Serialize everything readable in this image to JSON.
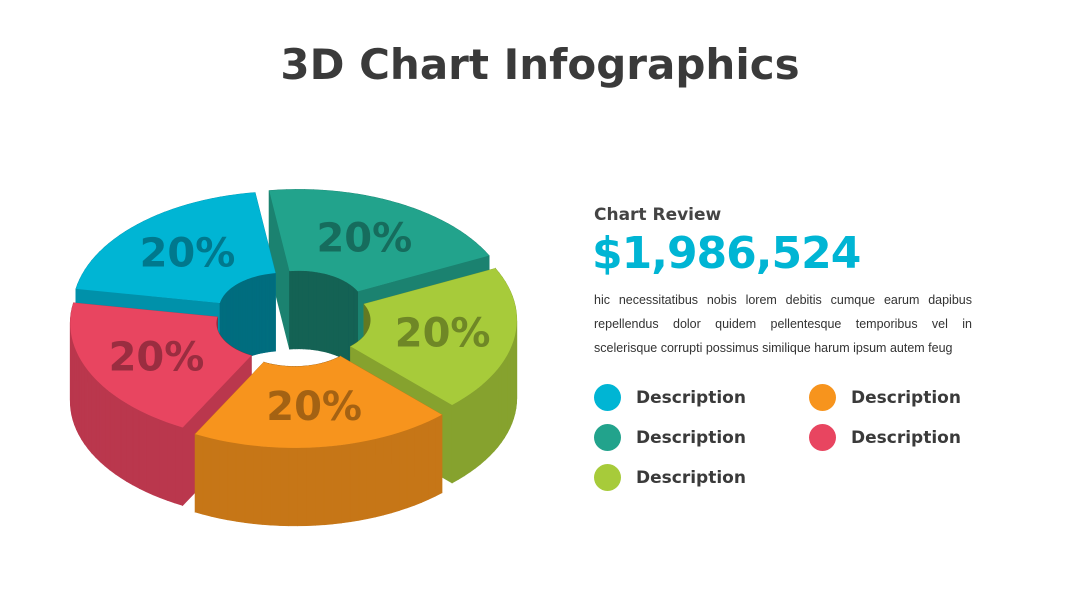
{
  "chart_data": {
    "type": "pie",
    "title": "3D Chart Infographics",
    "subtitle": "Chart Review",
    "annotations": [
      "$1,986,524",
      "hic necessitatibus nobis lorem debitis cumque earum dapibus repellendus dolor quidem pellentesque temporibus vel in scelerisque corrupti possimus similique harum ipsum autem feug"
    ],
    "categories": [
      "Description",
      "Description",
      "Description",
      "Description",
      "Description"
    ],
    "values": [
      20,
      20,
      20,
      20,
      20
    ],
    "value_labels": [
      "20%",
      "20%",
      "20%",
      "20%",
      "20%"
    ],
    "colors": [
      "#00b5d4",
      "#22a38c",
      "#a7cb3a",
      "#f7941d",
      "#e84560"
    ]
  }
}
